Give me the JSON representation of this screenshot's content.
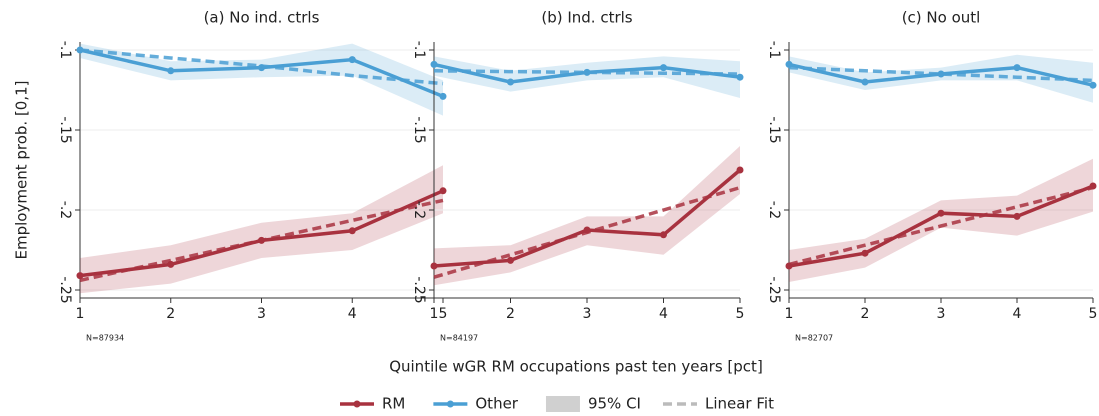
{
  "ylabel": "Employment prob. [0,1]",
  "xlabel": "Quintile wGR RM occupations past ten years [pct]",
  "ci_label": "95% CI",
  "fit_label": "Linear Fit",
  "legend_position": "bottom",
  "chart_data": [
    {
      "type": "line",
      "title": "(a) No ind. ctrls",
      "annotation": "N=87934",
      "x": [
        1,
        2,
        3,
        4,
        5
      ],
      "xlim": [
        1,
        5
      ],
      "xticks": [
        1,
        2,
        3,
        4,
        5
      ],
      "ylim": [
        -0.255,
        -0.095
      ],
      "yticks": [
        {
          "value": -0.1,
          "label": "-.1"
        },
        {
          "value": -0.15,
          "label": "-.15"
        },
        {
          "value": -0.2,
          "label": "-.2"
        },
        {
          "value": -0.25,
          "label": "-.25"
        }
      ],
      "grid": true,
      "series": [
        {
          "name": "RM",
          "color": "#a8323f",
          "values": [
            -0.241,
            -0.234,
            -0.219,
            -0.213,
            -0.188
          ],
          "ci_lower": [
            -0.252,
            -0.246,
            -0.23,
            -0.225,
            -0.202
          ],
          "ci_upper": [
            -0.23,
            -0.222,
            -0.208,
            -0.202,
            -0.172
          ],
          "fit": [
            -0.244,
            -0.2315,
            -0.219,
            -0.2065,
            -0.194
          ]
        },
        {
          "name": "Other",
          "color": "#4a9fd4",
          "values": [
            -0.1,
            -0.113,
            -0.111,
            -0.106,
            -0.129
          ],
          "ci_lower": [
            -0.105,
            -0.119,
            -0.117,
            -0.116,
            -0.141
          ],
          "ci_upper": [
            -0.096,
            -0.107,
            -0.106,
            -0.096,
            -0.119
          ],
          "fit": [
            -0.1,
            -0.105,
            -0.11,
            -0.116,
            -0.121
          ]
        }
      ]
    },
    {
      "type": "line",
      "title": "(b) Ind. ctrls",
      "annotation": "N=84197",
      "x": [
        1,
        2,
        3,
        4,
        5
      ],
      "xlim": [
        1,
        5
      ],
      "xticks": [
        1,
        2,
        3,
        4,
        5
      ],
      "ylim": [
        -0.255,
        -0.095
      ],
      "yticks": [
        {
          "value": -0.1,
          "label": "-.1"
        },
        {
          "value": -0.15,
          "label": "-.15"
        },
        {
          "value": -0.2,
          "label": "-.2"
        },
        {
          "value": -0.25,
          "label": "-.25"
        }
      ],
      "grid": true,
      "series": [
        {
          "name": "RM",
          "color": "#a8323f",
          "values": [
            -0.235,
            -0.2315,
            -0.2125,
            -0.2155,
            -0.175
          ],
          "ci_lower": [
            -0.247,
            -0.239,
            -0.222,
            -0.228,
            -0.19
          ],
          "ci_upper": [
            -0.224,
            -0.222,
            -0.204,
            -0.204,
            -0.16
          ],
          "fit": [
            -0.242,
            -0.228,
            -0.214,
            -0.2,
            -0.186
          ]
        },
        {
          "name": "Other",
          "color": "#4a9fd4",
          "values": [
            -0.109,
            -0.12,
            -0.114,
            -0.111,
            -0.117
          ],
          "ci_lower": [
            -0.116,
            -0.126,
            -0.119,
            -0.117,
            -0.13
          ],
          "ci_upper": [
            -0.104,
            -0.113,
            -0.108,
            -0.104,
            -0.107
          ],
          "fit": [
            -0.113,
            -0.1135,
            -0.114,
            -0.1145,
            -0.115
          ]
        }
      ]
    },
    {
      "type": "line",
      "title": "(c) No outl",
      "annotation": "N=82707",
      "x": [
        1,
        2,
        3,
        4,
        5
      ],
      "xlim": [
        1,
        5
      ],
      "xticks": [
        1,
        2,
        3,
        4,
        5
      ],
      "ylim": [
        -0.255,
        -0.095
      ],
      "yticks": [
        {
          "value": -0.1,
          "label": "-.1"
        },
        {
          "value": -0.15,
          "label": "-.15"
        },
        {
          "value": -0.2,
          "label": "-.2"
        },
        {
          "value": -0.25,
          "label": "-.25"
        }
      ],
      "grid": true,
      "series": [
        {
          "name": "RM",
          "color": "#a8323f",
          "values": [
            -0.235,
            -0.227,
            -0.202,
            -0.204,
            -0.185
          ],
          "ci_lower": [
            -0.245,
            -0.236,
            -0.211,
            -0.216,
            -0.201
          ],
          "ci_upper": [
            -0.225,
            -0.218,
            -0.194,
            -0.191,
            -0.168
          ],
          "fit": [
            -0.234,
            -0.222,
            -0.21,
            -0.198,
            -0.186
          ]
        },
        {
          "name": "Other",
          "color": "#4a9fd4",
          "values": [
            -0.109,
            -0.12,
            -0.115,
            -0.111,
            -0.122
          ],
          "ci_lower": [
            -0.114,
            -0.125,
            -0.119,
            -0.119,
            -0.133
          ],
          "ci_upper": [
            -0.104,
            -0.114,
            -0.111,
            -0.103,
            -0.108
          ],
          "fit": [
            -0.111,
            -0.113,
            -0.115,
            -0.117,
            -0.119
          ]
        }
      ]
    }
  ]
}
